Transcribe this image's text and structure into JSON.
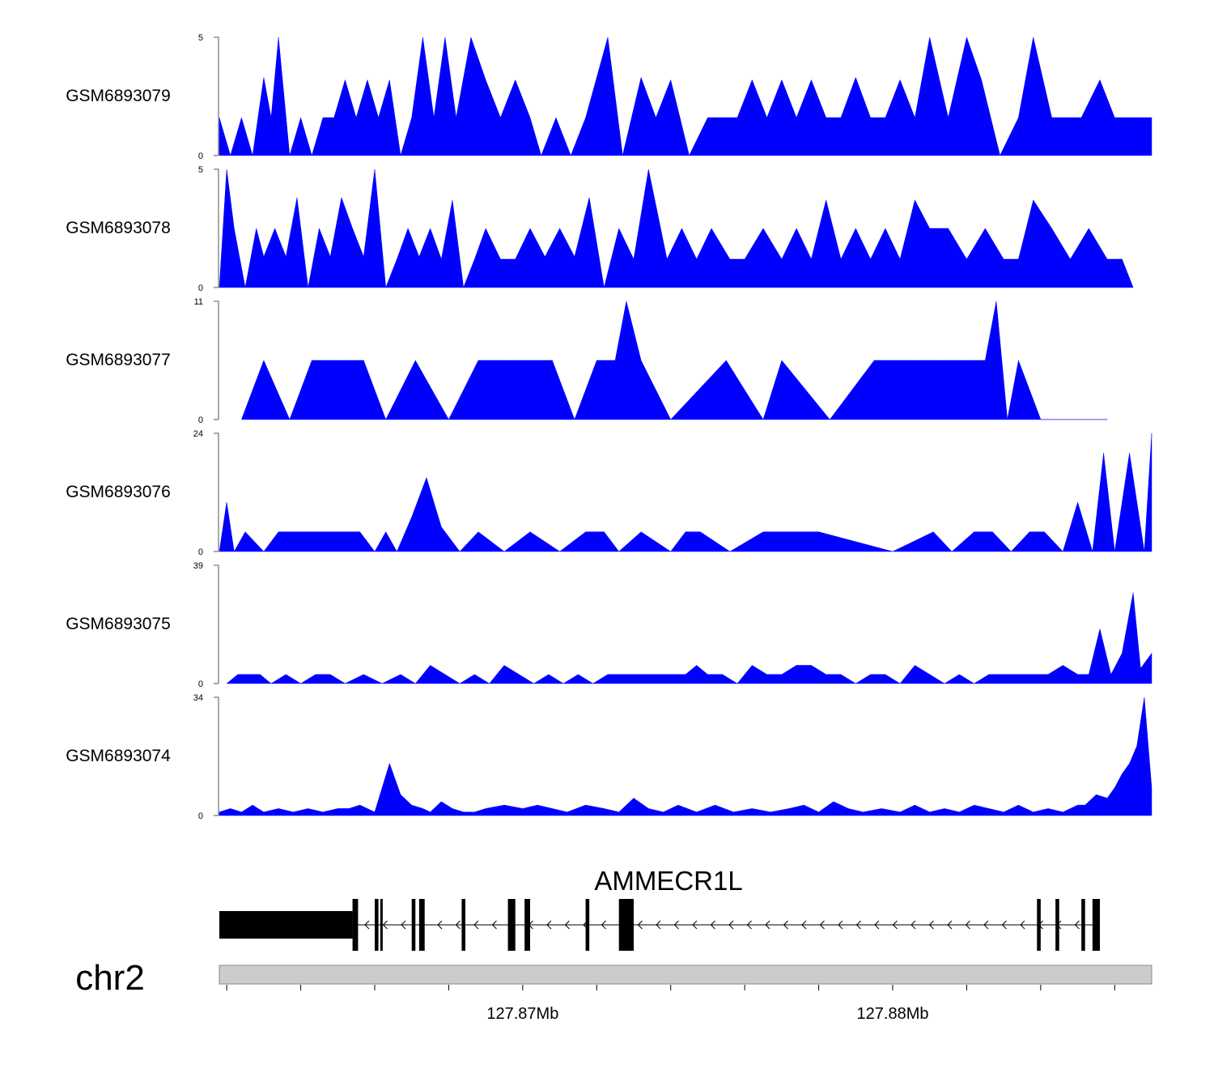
{
  "chart_data": {
    "type": "area",
    "title": "",
    "fill_color": "#0000ff",
    "x_unit": "bp",
    "x_range": [
      127861800,
      127887000
    ],
    "tracks": [
      {
        "name": "GSM6893079",
        "ylim": [
          0,
          5
        ],
        "y_ticks": [
          "0",
          "5"
        ],
        "x": [
          127861800,
          127862100,
          127862400,
          127862700,
          127863000,
          127863200,
          127863400,
          127863700,
          127864000,
          127864300,
          127864600,
          127864900,
          127865200,
          127865500,
          127865800,
          127866100,
          127866400,
          127866700,
          127867000,
          127867300,
          127867600,
          127867900,
          127868200,
          127868600,
          127869000,
          127869400,
          127869800,
          127870200,
          127870500,
          127870900,
          127871300,
          127871700,
          127872300,
          127872700,
          127873200,
          127873600,
          127874000,
          127874500,
          127875000,
          127875400,
          127875800,
          127876200,
          127876600,
          127877000,
          127877400,
          127877800,
          127878200,
          127878600,
          127879000,
          127879400,
          127879800,
          127880200,
          127880600,
          127881000,
          127881500,
          127882000,
          127882400,
          127882900,
          127883400,
          127883800,
          127884300,
          127884700,
          127885100,
          127885600,
          127886000,
          127886400,
          127886800,
          127887000
        ],
        "y": [
          1.6,
          0,
          1.6,
          0,
          3.3,
          1.6,
          5,
          0,
          1.6,
          0,
          1.6,
          1.6,
          3.2,
          1.6,
          3.2,
          1.6,
          3.2,
          0,
          1.6,
          5,
          1.6,
          5,
          1.6,
          5,
          3.2,
          1.6,
          3.2,
          1.6,
          0,
          1.6,
          0,
          1.6,
          5,
          0,
          3.3,
          1.6,
          3.2,
          0,
          1.6,
          1.6,
          1.6,
          3.2,
          1.6,
          3.2,
          1.6,
          3.2,
          1.6,
          1.6,
          3.3,
          1.6,
          1.6,
          3.2,
          1.6,
          5,
          1.6,
          5,
          3.2,
          0,
          1.6,
          5,
          1.6,
          1.6,
          1.6,
          3.2,
          1.6,
          1.6,
          1.6,
          1.6
        ]
      },
      {
        "name": "GSM6893078",
        "ylim": [
          0,
          5
        ],
        "y_ticks": [
          "0",
          "5"
        ],
        "x": [
          127861800,
          127862000,
          127862200,
          127862500,
          127862800,
          127863000,
          127863300,
          127863600,
          127863900,
          127864200,
          127864500,
          127864800,
          127865100,
          127865400,
          127865700,
          127866000,
          127866300,
          127866600,
          127866900,
          127867200,
          127867500,
          127867800,
          127868100,
          127868400,
          127868700,
          127869000,
          127869400,
          127869800,
          127870200,
          127870600,
          127871000,
          127871400,
          127871800,
          127872200,
          127872600,
          127873000,
          127873400,
          127873900,
          127874300,
          127874700,
          127875100,
          127875600,
          127876000,
          127876500,
          127877000,
          127877400,
          127877800,
          127878200,
          127878600,
          127879000,
          127879400,
          127879800,
          127880200,
          127880600,
          127881000,
          127881500,
          127882000,
          127882500,
          127883000,
          127883400,
          127883800,
          127884300,
          127884800,
          127885300,
          127885800,
          127886200,
          127886500
        ],
        "y": [
          0,
          5,
          2.5,
          0,
          2.5,
          1.3,
          2.5,
          1.3,
          3.8,
          0,
          2.5,
          1.3,
          3.8,
          2.5,
          1.3,
          5,
          0,
          1.2,
          2.5,
          1.3,
          2.5,
          1.2,
          3.7,
          0,
          1.2,
          2.5,
          1.2,
          1.2,
          2.5,
          1.3,
          2.5,
          1.3,
          3.8,
          0,
          2.5,
          1.2,
          5,
          1.2,
          2.5,
          1.2,
          2.5,
          1.2,
          1.2,
          2.5,
          1.2,
          2.5,
          1.2,
          3.7,
          1.2,
          2.5,
          1.2,
          2.5,
          1.2,
          3.7,
          2.5,
          2.5,
          1.2,
          2.5,
          1.2,
          1.2,
          3.7,
          2.5,
          1.2,
          2.5,
          1.2,
          1.2,
          0
        ]
      },
      {
        "name": "GSM6893077",
        "ylim": [
          0,
          11
        ],
        "y_ticks": [
          "0",
          "11"
        ],
        "x": [
          127862400,
          127863000,
          127863700,
          127864300,
          127865000,
          127865700,
          127866300,
          127867100,
          127868000,
          127868800,
          127869600,
          127870200,
          127870800,
          127871400,
          127872000,
          127872500,
          127872800,
          127873200,
          127874000,
          127875500,
          127876500,
          127877000,
          127878300,
          127879500,
          127880600,
          127881300,
          127882000,
          127882500,
          127882800,
          127883100,
          127883400,
          127884000,
          127885000,
          127885800
        ],
        "y": [
          0,
          5.5,
          0,
          5.5,
          5.5,
          5.5,
          0,
          5.5,
          0,
          5.5,
          5.5,
          5.5,
          5.5,
          0,
          5.5,
          5.5,
          11,
          5.5,
          0,
          5.5,
          0,
          5.5,
          0,
          5.5,
          5.5,
          5.5,
          5.5,
          5.5,
          11,
          0,
          5.5,
          0,
          0,
          0
        ]
      },
      {
        "name": "GSM6893076",
        "ylim": [
          0,
          24
        ],
        "y_ticks": [
          "0",
          "24"
        ],
        "x": [
          127861800,
          127862000,
          127862200,
          127862500,
          127863000,
          127863400,
          127863800,
          127864200,
          127864600,
          127865000,
          127865300,
          127865600,
          127866000,
          127866300,
          127866600,
          127867000,
          127867400,
          127867600,
          127867800,
          127868000,
          127868300,
          127868800,
          127869500,
          127870200,
          127871000,
          127871700,
          127872200,
          127872600,
          127873200,
          127874000,
          127874400,
          127874800,
          127875600,
          127876500,
          127878000,
          127880000,
          127881100,
          127881600,
          127882200,
          127882700,
          127883200,
          127883700,
          127884100,
          127884600,
          127885000,
          127885400,
          127885700,
          127886000,
          127886400,
          127886800,
          127887000
        ],
        "y": [
          0,
          10,
          0,
          4,
          0,
          4,
          4,
          4,
          4,
          4,
          4,
          4,
          0,
          4,
          0,
          7,
          15,
          10,
          5,
          3,
          0,
          4,
          0,
          4,
          0,
          4,
          4,
          0,
          4,
          0,
          4,
          4,
          0,
          4,
          4,
          0,
          4,
          0,
          4,
          4,
          0,
          4,
          4,
          0,
          10,
          0,
          20,
          0,
          20,
          0,
          24
        ]
      },
      {
        "name": "GSM6893075",
        "ylim": [
          0,
          39
        ],
        "y_ticks": [
          "0",
          "39"
        ],
        "x": [
          127862000,
          127862300,
          127862600,
          127862900,
          127863200,
          127863600,
          127864000,
          127864400,
          127864800,
          127865200,
          127865700,
          127866200,
          127866700,
          127867100,
          127867500,
          127867900,
          127868300,
          127868700,
          127869100,
          127869500,
          127869900,
          127870300,
          127870700,
          127871100,
          127871500,
          127871900,
          127872300,
          127872700,
          127873100,
          127873500,
          127873800,
          127874100,
          127874400,
          127874700,
          127875000,
          127875400,
          127875800,
          127876200,
          127876600,
          127877000,
          127877400,
          127877800,
          127878200,
          127878600,
          127879000,
          127879400,
          127879800,
          127880200,
          127880600,
          127881000,
          127881400,
          127881800,
          127882200,
          127882600,
          127883000,
          127883400,
          127883800,
          127884200,
          127884600,
          127885000,
          127885300,
          127885600,
          127885900,
          127886200,
          127886500,
          127886700,
          127887000
        ],
        "y": [
          0,
          3,
          3,
          3,
          0,
          3,
          0,
          3,
          3,
          0,
          3,
          0,
          3,
          0,
          6,
          3,
          0,
          3,
          0,
          6,
          3,
          0,
          3,
          0,
          3,
          0,
          3,
          3,
          3,
          3,
          3,
          3,
          3,
          6,
          3,
          3,
          0,
          6,
          3,
          3,
          6,
          6,
          3,
          3,
          0,
          3,
          3,
          0,
          6,
          3,
          0,
          3,
          0,
          3,
          3,
          3,
          3,
          3,
          6,
          3,
          3,
          18,
          3,
          10,
          30,
          5,
          10
        ]
      },
      {
        "name": "GSM6893074",
        "ylim": [
          0,
          34
        ],
        "y_ticks": [
          "0",
          "34"
        ],
        "x": [
          127861800,
          127862100,
          127862400,
          127862700,
          127863000,
          127863400,
          127863800,
          127864200,
          127864600,
          127865000,
          127865300,
          127865600,
          127866000,
          127866400,
          127866700,
          127867000,
          127867300,
          127867500,
          127867800,
          127868100,
          127868400,
          127868700,
          127869000,
          127869500,
          127870000,
          127870400,
          127870800,
          127871200,
          127871700,
          127872200,
          127872600,
          127873000,
          127873400,
          127873800,
          127874200,
          127874700,
          127875200,
          127875700,
          127876200,
          127876700,
          127877200,
          127877600,
          127878000,
          127878400,
          127878800,
          127879200,
          127879700,
          127880200,
          127880600,
          127881000,
          127881400,
          127881800,
          127882200,
          127882600,
          127883000,
          127883400,
          127883800,
          127884200,
          127884600,
          127885000,
          127885200,
          127885500,
          127885800,
          127886000,
          127886200,
          127886400,
          127886600,
          127886800,
          127887000
        ],
        "y": [
          1,
          2,
          1,
          3,
          1,
          2,
          1,
          2,
          1,
          2,
          2,
          3,
          1,
          15,
          6,
          3,
          2,
          1,
          4,
          2,
          1,
          1,
          2,
          3,
          2,
          3,
          2,
          1,
          3,
          2,
          1,
          5,
          2,
          1,
          3,
          1,
          3,
          1,
          2,
          1,
          2,
          3,
          1,
          4,
          2,
          1,
          2,
          1,
          3,
          1,
          2,
          1,
          3,
          2,
          1,
          3,
          1,
          2,
          1,
          3,
          3,
          6,
          5,
          8,
          12,
          15,
          20,
          34,
          8
        ]
      }
    ],
    "gene": {
      "name": "AMMECR1L",
      "chromosome": "chr2",
      "strand": "-",
      "exons": [
        [
          127861800,
          127865400
        ],
        [
          127865400,
          127865550
        ],
        [
          127866000,
          127866100
        ],
        [
          127866150,
          127866200
        ],
        [
          127867000,
          127867100
        ],
        [
          127867200,
          127867350
        ],
        [
          127868350,
          127868450
        ],
        [
          127869600,
          127869800
        ],
        [
          127870050,
          127870200
        ],
        [
          127871700,
          127871800
        ],
        [
          127872600,
          127873000
        ],
        [
          127883900,
          127884000
        ],
        [
          127884400,
          127884500
        ],
        [
          127885100,
          127885200
        ],
        [
          127885400,
          127885600
        ]
      ],
      "arrows": "<"
    },
    "axis": {
      "labels": [
        {
          "pos": 127870000,
          "text": "127.87Mb"
        },
        {
          "pos": 127880000,
          "text": "127.88Mb"
        }
      ],
      "minor_ticks": [
        127862000,
        127864000,
        127866000,
        127868000,
        127870000,
        127872000,
        127874000,
        127876000,
        127878000,
        127880000,
        127882000,
        127884000,
        127886000
      ]
    }
  }
}
